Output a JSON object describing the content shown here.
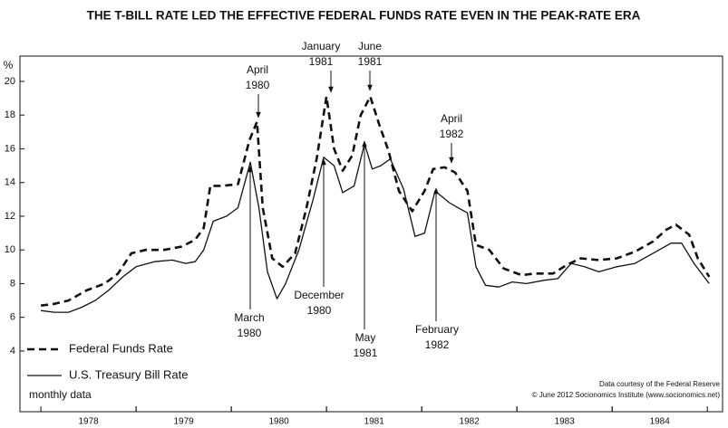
{
  "chart_data": {
    "type": "line",
    "title": "THE T-BILL RATE LED THE EFFECTIVE FEDERAL FUNDS RATE EVEN IN THE PEAK-RATE ERA",
    "ylabel": "%",
    "xlim": [
      1977.78,
      1985.16
    ],
    "xticks": [
      {
        "value": 1978.5,
        "label": "1978"
      },
      {
        "value": 1979.5,
        "label": "1979"
      },
      {
        "value": 1980.5,
        "label": "1980"
      },
      {
        "value": 1981.5,
        "label": "1981"
      },
      {
        "value": 1982.5,
        "label": "1982"
      },
      {
        "value": 1983.5,
        "label": "1983"
      },
      {
        "value": 1984.5,
        "label": "1984"
      }
    ],
    "ylim": [
      0.4,
      21.5
    ],
    "yticks": [
      4,
      6,
      8,
      10,
      12,
      14,
      16,
      18,
      20
    ],
    "grid": false,
    "series": [
      {
        "name": "Federal Funds Rate",
        "color": "#111111",
        "dash": true,
        "x": [
          1978.0,
          1978.14,
          1978.29,
          1978.48,
          1978.67,
          1978.81,
          1978.95,
          1979.1,
          1979.29,
          1979.48,
          1979.62,
          1979.71,
          1979.78,
          1979.9,
          1980.07,
          1980.19,
          1980.27,
          1980.33,
          1980.43,
          1980.54,
          1980.67,
          1980.79,
          1980.9,
          1981.0,
          1981.08,
          1981.17,
          1981.27,
          1981.36,
          1981.46,
          1981.55,
          1981.65,
          1981.76,
          1981.9,
          1982.03,
          1982.12,
          1982.24,
          1982.35,
          1982.48,
          1982.57,
          1982.71,
          1982.86,
          1983.05,
          1983.19,
          1983.38,
          1983.52,
          1983.67,
          1983.86,
          1984.05,
          1984.24,
          1984.43,
          1984.57,
          1984.67,
          1984.81,
          1984.9,
          1985.02
        ],
        "values": [
          6.7,
          6.8,
          7.0,
          7.6,
          8.0,
          8.6,
          9.8,
          10.0,
          10.0,
          10.2,
          10.6,
          11.3,
          13.8,
          13.8,
          13.9,
          16.5,
          17.6,
          12.5,
          9.5,
          9.0,
          9.8,
          12.5,
          15.5,
          19.1,
          16.0,
          14.7,
          15.6,
          18.0,
          19.1,
          17.5,
          15.9,
          13.5,
          12.3,
          13.5,
          14.8,
          14.9,
          14.6,
          13.5,
          10.3,
          10.0,
          8.9,
          8.5,
          8.6,
          8.6,
          9.1,
          9.5,
          9.4,
          9.5,
          9.9,
          10.5,
          11.2,
          11.5,
          10.9,
          9.5,
          8.4
        ]
      },
      {
        "name": "U.S. Treasury Bill Rate",
        "color": "#111111",
        "dash": false,
        "x": [
          1978.0,
          1978.14,
          1978.29,
          1978.43,
          1978.57,
          1978.71,
          1978.86,
          1979.0,
          1979.19,
          1979.38,
          1979.52,
          1979.62,
          1979.71,
          1979.81,
          1979.95,
          1980.07,
          1980.2,
          1980.29,
          1980.38,
          1980.48,
          1980.57,
          1980.71,
          1980.86,
          1980.97,
          1981.08,
          1981.17,
          1981.29,
          1981.4,
          1981.48,
          1981.57,
          1981.67,
          1981.81,
          1981.93,
          1982.03,
          1982.14,
          1982.29,
          1982.38,
          1982.48,
          1982.57,
          1982.67,
          1982.81,
          1982.95,
          1983.1,
          1983.29,
          1983.43,
          1983.57,
          1983.71,
          1983.86,
          1984.05,
          1984.24,
          1984.43,
          1984.62,
          1984.73,
          1984.86,
          1985.02
        ],
        "values": [
          6.4,
          6.3,
          6.3,
          6.6,
          7.0,
          7.6,
          8.4,
          9.0,
          9.3,
          9.4,
          9.2,
          9.3,
          10.0,
          11.7,
          12.0,
          12.5,
          15.2,
          12.5,
          8.7,
          7.1,
          8.0,
          10.0,
          13.0,
          15.5,
          15.0,
          13.4,
          13.8,
          16.3,
          14.8,
          15.0,
          15.4,
          13.6,
          10.8,
          11.0,
          13.5,
          12.8,
          12.5,
          12.2,
          9.0,
          7.9,
          7.8,
          8.1,
          8.0,
          8.2,
          8.3,
          9.2,
          9.0,
          8.7,
          9.0,
          9.2,
          9.8,
          10.4,
          10.4,
          9.2,
          8.0
        ]
      }
    ],
    "annotations": [
      [
        "April",
        "1980"
      ],
      [
        "January",
        "1981"
      ],
      [
        "June",
        "1981"
      ],
      [
        "April",
        "1982"
      ],
      [
        "March",
        "1980"
      ],
      [
        "December",
        "1980"
      ],
      [
        "May",
        "1981"
      ],
      [
        "February",
        "1982"
      ]
    ],
    "notes": [
      "monthly data",
      "Data courtesy of the Federal Reserve",
      "© June 2012 Socionomics Institute (www.socionomics.net)"
    ]
  }
}
